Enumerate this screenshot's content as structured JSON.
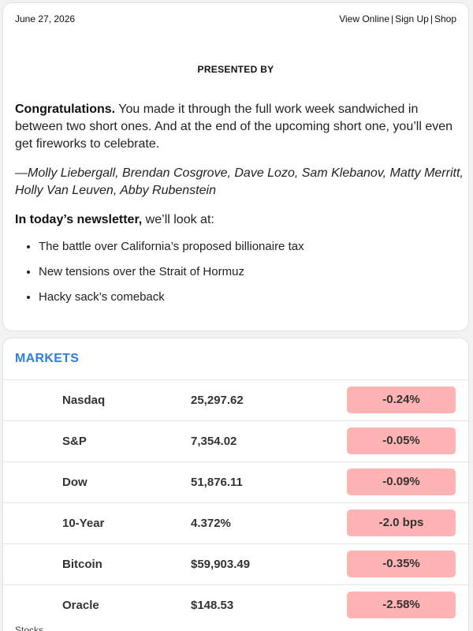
{
  "header": {
    "date": "June 27, 2026",
    "links": [
      "View Online",
      "Sign Up",
      "Shop"
    ],
    "separator": "|"
  },
  "sponsor": {
    "label": "PRESENTED BY"
  },
  "intro": {
    "lead": "Congratulations.",
    "body": " You made it through the full work week sandwiched in between two short ones. And at the end of the upcoming short one, you’ll even get fireworks to celebrate.",
    "authors": "—Molly Liebergall, Brendan Cosgrove, Dave Lozo, Sam Klebanov, Matty Merritt, Holly Van Leuven, Abby Rubenstein",
    "today_lead": "In today’s newsletter,",
    "today_body": " we’ll look at:",
    "bullets": [
      "The battle over California’s proposed billionaire tax",
      "New tensions over the Strait of Hormuz",
      "Hacky sack’s comeback"
    ]
  },
  "markets": {
    "title": "MARKETS",
    "negative_color": "#ffb3b3",
    "rows": [
      {
        "name": "Nasdaq",
        "value": "25,297.62",
        "change": "-0.24%"
      },
      {
        "name": "S&P",
        "value": "7,354.02",
        "change": "-0.05%"
      },
      {
        "name": "Dow",
        "value": "51,876.11",
        "change": "-0.09%"
      },
      {
        "name": "10-Year",
        "value": "4.372%",
        "change": "-2.0 bps"
      },
      {
        "name": "Bitcoin",
        "value": "$59,903.49",
        "change": "-0.35%"
      },
      {
        "name": "Oracle",
        "value": "$148.53",
        "change": "-2.58%"
      }
    ],
    "footer_partial": "Stocks ... ."
  },
  "colors": {
    "accent": "#2e7de1",
    "card_bg": "#ffffff",
    "page_bg": "#f2f2f2"
  }
}
